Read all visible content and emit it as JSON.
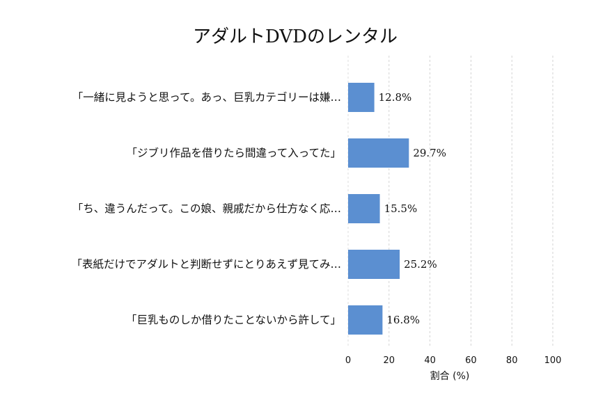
{
  "chart_data": {
    "type": "bar",
    "orientation": "horizontal",
    "title": "アダルトDVDのレンタル",
    "xlabel": "割合 (%)",
    "ylabel": "",
    "xlim": [
      0,
      100
    ],
    "xticks": [
      0,
      20,
      40,
      60,
      80,
      100
    ],
    "grid": true,
    "bar_color": "#5b8fd1",
    "categories": [
      "「一緒に見ようと思って。あっ、巨乳カテゴリーは嫌…",
      "「ジブリ作品を借りたら間違って入ってた」",
      "「ち、違うんだって。この娘、親戚だから仕方なく応…",
      "「表紙だけでアダルトと判断せずにとりあえず見てみ…",
      "「巨乳ものしか借りたことないから許して」"
    ],
    "values": [
      12.8,
      29.7,
      15.5,
      25.2,
      16.8
    ],
    "value_labels": [
      "12.8%",
      "29.7%",
      "15.5%",
      "25.2%",
      "16.8%"
    ]
  }
}
